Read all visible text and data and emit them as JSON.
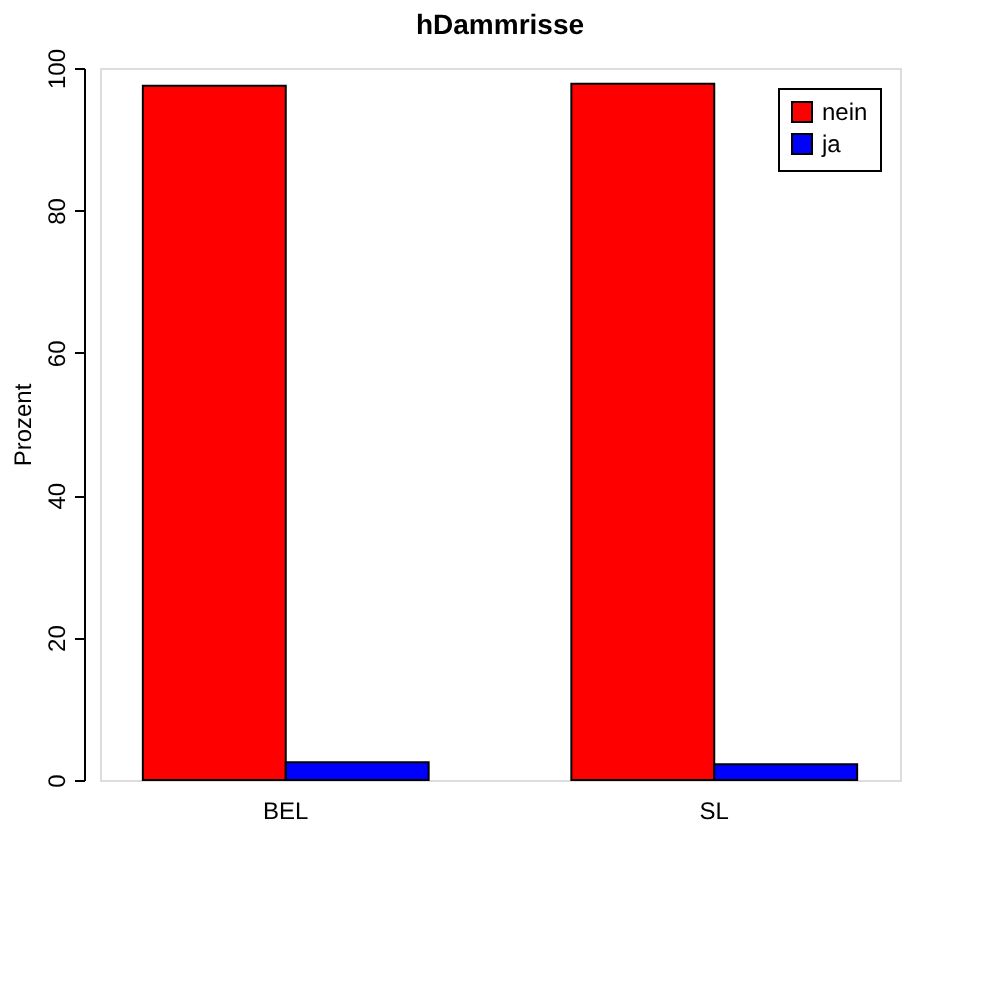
{
  "chart_data": {
    "type": "bar",
    "title": "hDammrisse",
    "ylabel": "Prozent",
    "categories": [
      "BEL",
      "SL"
    ],
    "series": [
      {
        "name": "nein",
        "color": "#ff0000",
        "values": [
          97.5,
          97.8
        ]
      },
      {
        "name": "ja",
        "color": "#0000ff",
        "values": [
          2.5,
          2.2
        ]
      }
    ],
    "ylim": [
      0,
      100
    ],
    "yticks": [
      0,
      20,
      40,
      60,
      80,
      100
    ],
    "grid": false,
    "legend": "top right"
  }
}
